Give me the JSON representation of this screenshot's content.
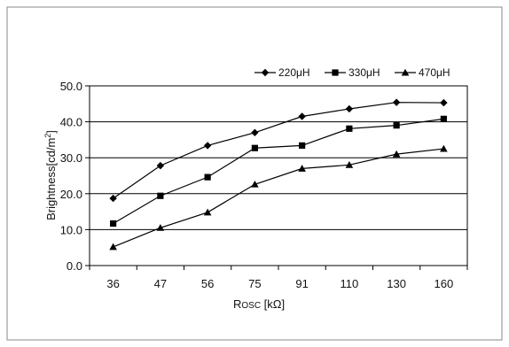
{
  "chart_data": {
    "type": "line",
    "categories": [
      "36",
      "47",
      "56",
      "75",
      "91",
      "110",
      "130",
      "160"
    ],
    "series": [
      {
        "name": "220μH",
        "marker": "diamond",
        "values": [
          18.7,
          27.8,
          33.4,
          37.0,
          41.5,
          43.6,
          45.4,
          45.3
        ]
      },
      {
        "name": "330μH",
        "marker": "square",
        "values": [
          11.7,
          19.4,
          24.6,
          32.7,
          33.4,
          38.1,
          39.0,
          40.8
        ]
      },
      {
        "name": "470μH",
        "marker": "triangle",
        "values": [
          5.2,
          10.5,
          14.8,
          22.6,
          27.0,
          28.0,
          31.0,
          32.5
        ]
      }
    ],
    "yticks": [
      "0.0",
      "10.0",
      "20.0",
      "30.0",
      "40.0",
      "50.0"
    ],
    "ylim": [
      0,
      50
    ],
    "grid": "horizontal",
    "legend": "top-right",
    "xlabel": {
      "main": "R",
      "sub": "OSC",
      "unit": " [kΩ]"
    },
    "ylabel": {
      "main": "Brightness[cd/m",
      "sup": "2",
      "end": "]"
    },
    "color": "#000000"
  }
}
